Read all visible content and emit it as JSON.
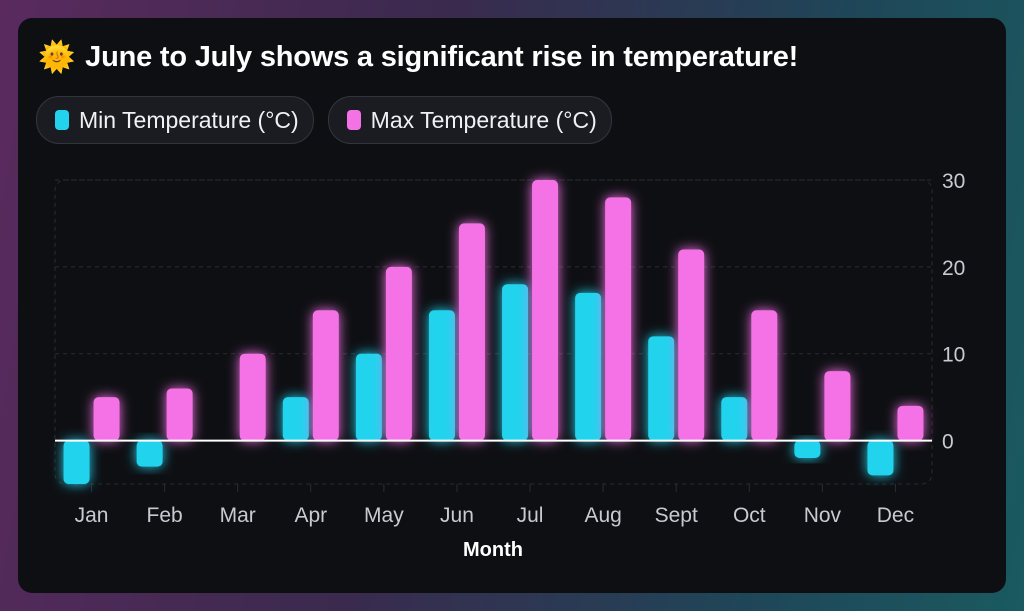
{
  "title": "June to July shows a significant rise in temperature!",
  "title_icon": "sun-with-face-icon",
  "chart_data": {
    "type": "bar",
    "title": "June to July shows a significant rise in temperature!",
    "xlabel": "Month",
    "ylabel": "",
    "categories": [
      "Jan",
      "Feb",
      "Mar",
      "Apr",
      "May",
      "Jun",
      "Jul",
      "Aug",
      "Sept",
      "Oct",
      "Nov",
      "Dec"
    ],
    "series": [
      {
        "name": "Min Temperature (°C)",
        "color": "#22d3ee",
        "values": [
          -5,
          -3,
          0,
          5,
          10,
          15,
          18,
          17,
          12,
          5,
          -2,
          -4
        ]
      },
      {
        "name": "Max Temperature (°C)",
        "color": "#f472e6",
        "values": [
          5,
          6,
          10,
          15,
          20,
          25,
          30,
          28,
          22,
          15,
          8,
          4
        ]
      }
    ],
    "ylim": [
      -5,
      30
    ],
    "yticks": [
      0,
      10,
      20,
      30
    ],
    "y_axis_position": "right",
    "grid": true,
    "legend_placement": "top-left"
  }
}
